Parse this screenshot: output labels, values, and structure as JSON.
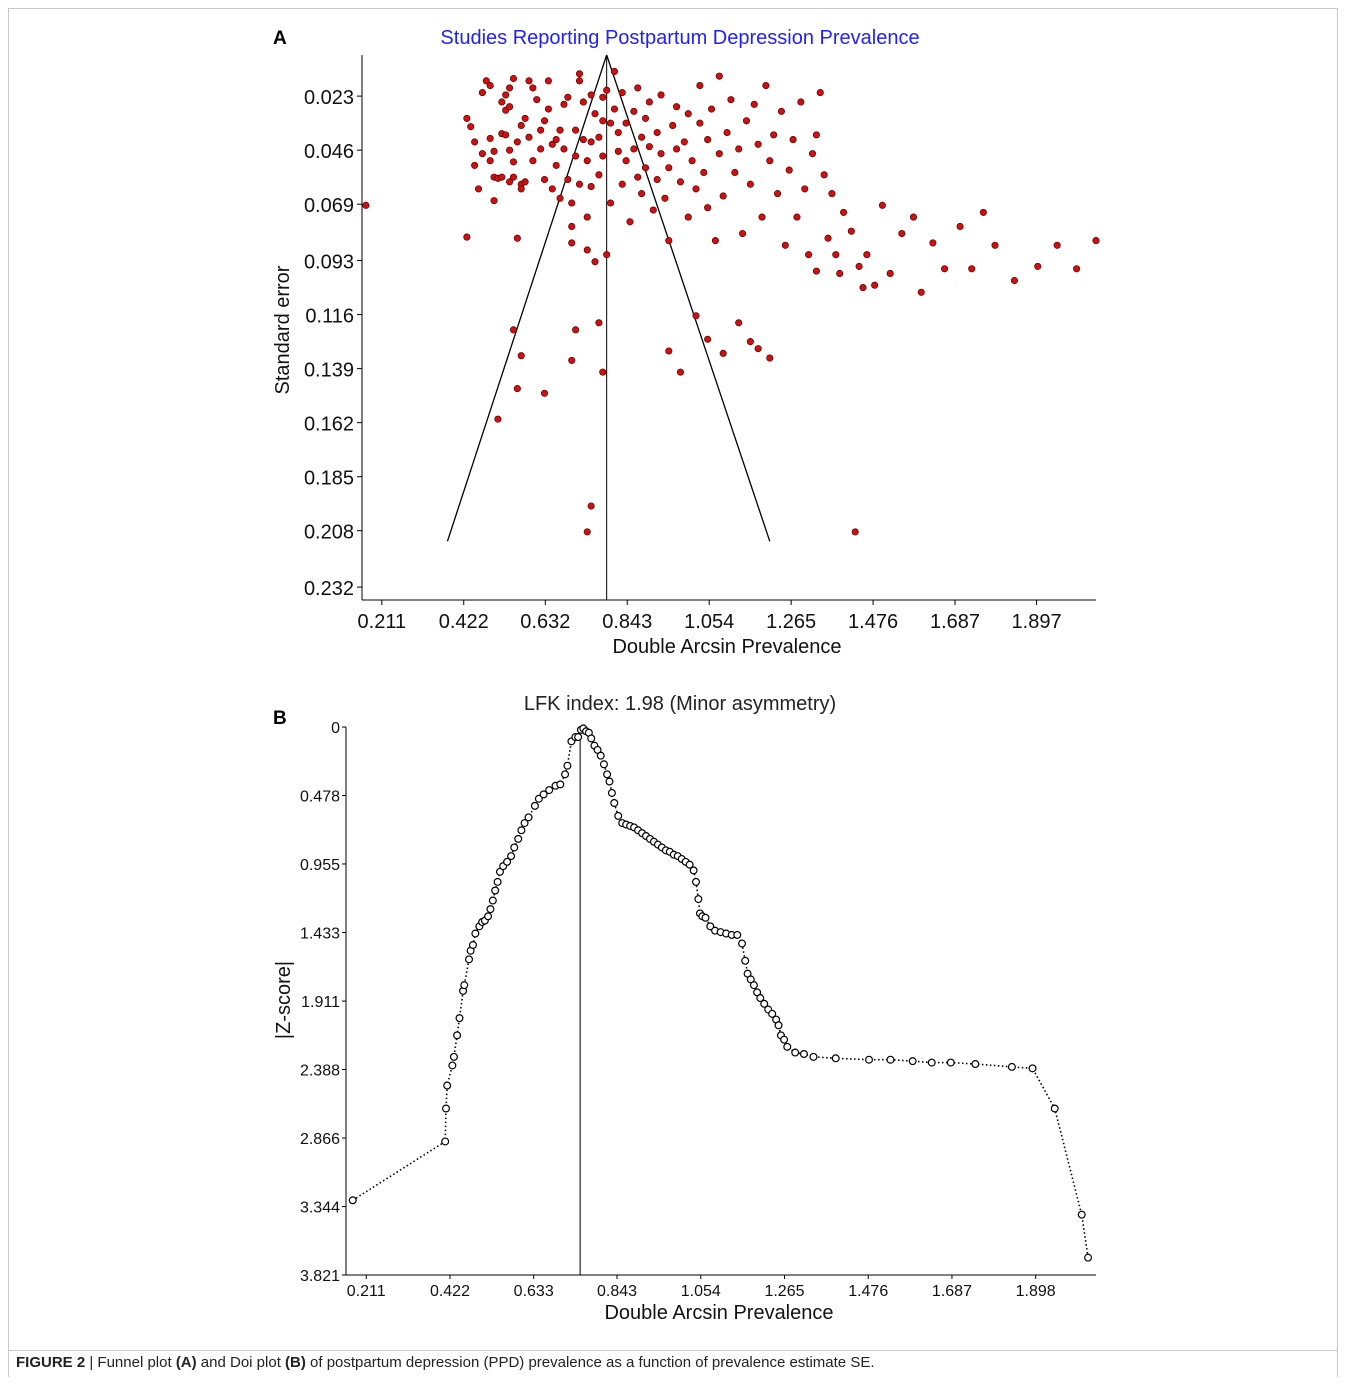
{
  "figure": {
    "caption_lead": "FIGURE 2",
    "caption_parts": [
      " | Funnel plot ",
      "(A)",
      " and Doi plot ",
      "(B)",
      " of postpartum depression (PPD) prevalence as a function of prevalence estimate SE."
    ]
  },
  "chart_data": [
    {
      "panel_label": "A",
      "type": "scatter",
      "title": "Studies Reporting Postpartum Depression Prevalence",
      "title_color": "#1f1fff",
      "xlabel": "Double Arcsin Prevalence",
      "ylabel": "Standard error",
      "x_ticks": [
        "0.211",
        "0.422",
        "0.632",
        "0.843",
        "1.054",
        "1.265",
        "1.476",
        "1.687",
        "1.897"
      ],
      "y_ticks": [
        "0.023",
        "0.046",
        "0.069",
        "0.093",
        "0.116",
        "0.139",
        "0.162",
        "0.185",
        "0.208",
        "0.232"
      ],
      "xlim": [
        0.16,
        2.05
      ],
      "ylim": [
        0.0055,
        0.2375
      ],
      "y_inverted": true,
      "point_color": "#d01010",
      "center_line_x": 0.79,
      "funnel": {
        "apex": [
          0.79,
          0.0055
        ],
        "left_base": [
          0.38,
          0.2125
        ],
        "right_base": [
          1.21,
          0.2125
        ]
      },
      "points": [
        [
          0.17,
          0.0695
        ],
        [
          0.43,
          0.083
        ],
        [
          0.43,
          0.0325
        ],
        [
          0.44,
          0.036
        ],
        [
          0.45,
          0.0425
        ],
        [
          0.45,
          0.0525
        ],
        [
          0.46,
          0.0625
        ],
        [
          0.47,
          0.0475
        ],
        [
          0.47,
          0.0215
        ],
        [
          0.48,
          0.0165
        ],
        [
          0.49,
          0.0505
        ],
        [
          0.49,
          0.041
        ],
        [
          0.49,
          0.0185
        ],
        [
          0.5,
          0.0575
        ],
        [
          0.5,
          0.0675
        ],
        [
          0.5,
          0.0465
        ],
        [
          0.51,
          0.058
        ],
        [
          0.52,
          0.039
        ],
        [
          0.52,
          0.0255
        ],
        [
          0.52,
          0.0575
        ],
        [
          0.53,
          0.0395
        ],
        [
          0.53,
          0.029
        ],
        [
          0.53,
          0.0225
        ],
        [
          0.54,
          0.046
        ],
        [
          0.54,
          0.0195
        ],
        [
          0.54,
          0.0275
        ],
        [
          0.54,
          0.0595
        ],
        [
          0.55,
          0.0575
        ],
        [
          0.55,
          0.0155
        ],
        [
          0.55,
          0.051
        ],
        [
          0.56,
          0.0425
        ],
        [
          0.56,
          0.0835
        ],
        [
          0.57,
          0.0605
        ],
        [
          0.57,
          0.0625
        ],
        [
          0.57,
          0.0355
        ],
        [
          0.58,
          0.0595
        ],
        [
          0.58,
          0.0325
        ],
        [
          0.59,
          0.0165
        ],
        [
          0.59,
          0.0405
        ],
        [
          0.6,
          0.0505
        ],
        [
          0.6,
          0.0195
        ],
        [
          0.61,
          0.0245
        ],
        [
          0.62,
          0.0455
        ],
        [
          0.62,
          0.0375
        ],
        [
          0.63,
          0.0585
        ],
        [
          0.63,
          0.0335
        ],
        [
          0.64,
          0.0165
        ],
        [
          0.64,
          0.0285
        ],
        [
          0.65,
          0.0435
        ],
        [
          0.65,
          0.0625
        ],
        [
          0.66,
          0.0525
        ],
        [
          0.66,
          0.0415
        ],
        [
          0.67,
          0.0665
        ],
        [
          0.67,
          0.0375
        ],
        [
          0.68,
          0.0455
        ],
        [
          0.68,
          0.0265
        ],
        [
          0.69,
          0.0585
        ],
        [
          0.69,
          0.0235
        ],
        [
          0.7,
          0.0685
        ],
        [
          0.7,
          0.0785
        ],
        [
          0.7,
          0.0855
        ],
        [
          0.71,
          0.0485
        ],
        [
          0.71,
          0.0375
        ],
        [
          0.72,
          0.0135
        ],
        [
          0.72,
          0.0165
        ],
        [
          0.72,
          0.0605
        ],
        [
          0.73,
          0.0415
        ],
        [
          0.73,
          0.0255
        ],
        [
          0.74,
          0.0745
        ],
        [
          0.74,
          0.0885
        ],
        [
          0.74,
          0.0505
        ],
        [
          0.75,
          0.0425
        ],
        [
          0.75,
          0.0225
        ],
        [
          0.75,
          0.0615
        ],
        [
          0.76,
          0.0305
        ],
        [
          0.76,
          0.0935
        ],
        [
          0.77,
          0.0405
        ],
        [
          0.77,
          0.0565
        ],
        [
          0.78,
          0.0235
        ],
        [
          0.78,
          0.0335
        ],
        [
          0.78,
          0.0485
        ],
        [
          0.79,
          0.0905
        ],
        [
          0.79,
          0.0205
        ],
        [
          0.8,
          0.0345
        ],
        [
          0.8,
          0.0685
        ],
        [
          0.81,
          0.0285
        ],
        [
          0.81,
          0.0125
        ],
        [
          0.82,
          0.0465
        ],
        [
          0.82,
          0.0385
        ],
        [
          0.83,
          0.0215
        ],
        [
          0.83,
          0.0605
        ],
        [
          0.84,
          0.0345
        ],
        [
          0.84,
          0.0505
        ],
        [
          0.85,
          0.0765
        ],
        [
          0.86,
          0.0455
        ],
        [
          0.86,
          0.0295
        ],
        [
          0.87,
          0.0575
        ],
        [
          0.87,
          0.0195
        ],
        [
          0.88,
          0.0405
        ],
        [
          0.88,
          0.0645
        ],
        [
          0.89,
          0.0325
        ],
        [
          0.89,
          0.0535
        ],
        [
          0.9,
          0.0445
        ],
        [
          0.9,
          0.0255
        ],
        [
          0.91,
          0.0715
        ],
        [
          0.92,
          0.0385
        ],
        [
          0.92,
          0.0585
        ],
        [
          0.93,
          0.0475
        ],
        [
          0.93,
          0.0225
        ],
        [
          0.94,
          0.0665
        ],
        [
          0.95,
          0.0535
        ],
        [
          0.95,
          0.0845
        ],
        [
          0.96,
          0.0355
        ],
        [
          0.97,
          0.0455
        ],
        [
          0.97,
          0.0275
        ],
        [
          0.98,
          0.0595
        ],
        [
          0.99,
          0.0425
        ],
        [
          1.0,
          0.0745
        ],
        [
          1.0,
          0.0305
        ],
        [
          1.01,
          0.0505
        ],
        [
          1.02,
          0.0625
        ],
        [
          1.03,
          0.0345
        ],
        [
          1.03,
          0.0185
        ],
        [
          1.04,
          0.0555
        ],
        [
          1.05,
          0.0415
        ],
        [
          1.05,
          0.0705
        ],
        [
          1.06,
          0.0285
        ],
        [
          1.07,
          0.0845
        ],
        [
          1.08,
          0.0475
        ],
        [
          1.08,
          0.0145
        ],
        [
          1.09,
          0.0655
        ],
        [
          1.1,
          0.0385
        ],
        [
          1.11,
          0.0245
        ],
        [
          1.12,
          0.0555
        ],
        [
          1.13,
          0.0455
        ],
        [
          1.14,
          0.0815
        ],
        [
          1.15,
          0.0335
        ],
        [
          1.16,
          0.0605
        ],
        [
          1.17,
          0.0265
        ],
        [
          1.18,
          0.0435
        ],
        [
          1.19,
          0.0745
        ],
        [
          1.2,
          0.0185
        ],
        [
          1.21,
          0.0505
        ],
        [
          1.22,
          0.0395
        ],
        [
          1.23,
          0.0645
        ],
        [
          1.24,
          0.0295
        ],
        [
          1.25,
          0.0865
        ],
        [
          1.26,
          0.0545
        ],
        [
          1.27,
          0.0415
        ],
        [
          1.28,
          0.0745
        ],
        [
          1.29,
          0.0255
        ],
        [
          1.3,
          0.0625
        ],
        [
          1.31,
          0.0905
        ],
        [
          1.32,
          0.0475
        ],
        [
          1.33,
          0.0395
        ],
        [
          1.33,
          0.0975
        ],
        [
          1.34,
          0.0215
        ],
        [
          1.35,
          0.0565
        ],
        [
          1.36,
          0.0835
        ],
        [
          1.37,
          0.0645
        ],
        [
          1.38,
          0.0905
        ],
        [
          1.39,
          0.0985
        ],
        [
          1.4,
          0.0725
        ],
        [
          1.42,
          0.0805
        ],
        [
          1.44,
          0.0955
        ],
        [
          1.45,
          0.1045
        ],
        [
          1.46,
          0.0905
        ],
        [
          1.48,
          0.1035
        ],
        [
          1.5,
          0.0695
        ],
        [
          1.52,
          0.0985
        ],
        [
          1.55,
          0.0815
        ],
        [
          1.58,
          0.0745
        ],
        [
          1.6,
          0.1065
        ],
        [
          1.63,
          0.0855
        ],
        [
          1.66,
          0.0965
        ],
        [
          1.7,
          0.0785
        ],
        [
          1.73,
          0.0965
        ],
        [
          1.76,
          0.0725
        ],
        [
          1.79,
          0.0865
        ],
        [
          1.84,
          0.1015
        ],
        [
          1.9,
          0.0955
        ],
        [
          1.95,
          0.0865
        ],
        [
          2.0,
          0.0965
        ],
        [
          2.05,
          0.0845
        ],
        [
          0.55,
          0.1225
        ],
        [
          0.57,
          0.1335
        ],
        [
          0.63,
          0.1495
        ],
        [
          0.7,
          0.1355
        ],
        [
          0.71,
          0.1225
        ],
        [
          0.77,
          0.1195
        ],
        [
          0.78,
          0.1405
        ],
        [
          0.95,
          0.1315
        ],
        [
          0.98,
          0.1405
        ],
        [
          1.02,
          0.1165
        ],
        [
          1.05,
          0.1265
        ],
        [
          1.09,
          0.1325
        ],
        [
          1.13,
          0.1195
        ],
        [
          1.16,
          0.1275
        ],
        [
          1.18,
          0.1305
        ],
        [
          1.21,
          0.1345
        ],
        [
          0.56,
          0.1475
        ],
        [
          0.51,
          0.1605
        ],
        [
          0.75,
          0.1975
        ],
        [
          0.74,
          0.2085
        ],
        [
          1.43,
          0.2085
        ]
      ]
    },
    {
      "panel_label": "B",
      "type": "line",
      "title": "LFK index: 1.98 (Minor asymmetry)",
      "xlabel": "Double Arcsin Prevalence",
      "ylabel": "|Z-score|",
      "x_ticks": [
        "0.211",
        "0.422",
        "0.633",
        "0.843",
        "1.054",
        "1.265",
        "1.476",
        "1.687",
        "1.898"
      ],
      "y_ticks": [
        "0",
        "0.478",
        "0.955",
        "1.433",
        "1.911",
        "2.388",
        "2.866",
        "3.344",
        "3.821"
      ],
      "xlim": [
        0.16,
        2.05
      ],
      "ylim": [
        0,
        3.821
      ],
      "y_inverted": true,
      "center_line_x": 0.75,
      "marker": "open-circle",
      "line_style": "dotted",
      "points": [
        [
          0.177,
          3.3
        ],
        [
          0.41,
          2.89
        ],
        [
          0.412,
          2.66
        ],
        [
          0.415,
          2.5
        ],
        [
          0.428,
          2.36
        ],
        [
          0.432,
          2.3
        ],
        [
          0.44,
          2.15
        ],
        [
          0.446,
          2.03
        ],
        [
          0.455,
          1.84
        ],
        [
          0.458,
          1.8
        ],
        [
          0.47,
          1.62
        ],
        [
          0.474,
          1.56
        ],
        [
          0.48,
          1.52
        ],
        [
          0.486,
          1.44
        ],
        [
          0.496,
          1.39
        ],
        [
          0.503,
          1.36
        ],
        [
          0.51,
          1.35
        ],
        [
          0.518,
          1.32
        ],
        [
          0.524,
          1.27
        ],
        [
          0.53,
          1.21
        ],
        [
          0.536,
          1.14
        ],
        [
          0.542,
          1.08
        ],
        [
          0.548,
          1.01
        ],
        [
          0.556,
          0.97
        ],
        [
          0.566,
          0.94
        ],
        [
          0.576,
          0.9
        ],
        [
          0.584,
          0.84
        ],
        [
          0.594,
          0.78
        ],
        [
          0.602,
          0.72
        ],
        [
          0.61,
          0.67
        ],
        [
          0.62,
          0.63
        ],
        [
          0.636,
          0.55
        ],
        [
          0.646,
          0.5
        ],
        [
          0.658,
          0.47
        ],
        [
          0.672,
          0.44
        ],
        [
          0.688,
          0.41
        ],
        [
          0.7,
          0.4
        ],
        [
          0.712,
          0.33
        ],
        [
          0.718,
          0.27
        ],
        [
          0.728,
          0.1
        ],
        [
          0.738,
          0.07
        ],
        [
          0.745,
          0.07
        ],
        [
          0.752,
          0.02
        ],
        [
          0.758,
          0.01
        ],
        [
          0.765,
          0.03
        ],
        [
          0.772,
          0.04
        ],
        [
          0.778,
          0.08
        ],
        [
          0.786,
          0.13
        ],
        [
          0.794,
          0.16
        ],
        [
          0.802,
          0.2
        ],
        [
          0.81,
          0.26
        ],
        [
          0.818,
          0.33
        ],
        [
          0.824,
          0.38
        ],
        [
          0.83,
          0.46
        ],
        [
          0.836,
          0.53
        ],
        [
          0.846,
          0.62
        ],
        [
          0.856,
          0.67
        ],
        [
          0.866,
          0.68
        ],
        [
          0.876,
          0.69
        ],
        [
          0.886,
          0.7
        ],
        [
          0.896,
          0.72
        ],
        [
          0.906,
          0.74
        ],
        [
          0.916,
          0.76
        ],
        [
          0.926,
          0.78
        ],
        [
          0.936,
          0.8
        ],
        [
          0.946,
          0.82
        ],
        [
          0.956,
          0.84
        ],
        [
          0.966,
          0.86
        ],
        [
          0.976,
          0.87
        ],
        [
          0.986,
          0.89
        ],
        [
          0.996,
          0.9
        ],
        [
          1.006,
          0.92
        ],
        [
          1.016,
          0.94
        ],
        [
          1.026,
          0.96
        ],
        [
          1.036,
          1.0
        ],
        [
          1.042,
          1.08
        ],
        [
          1.048,
          1.2
        ],
        [
          1.052,
          1.3
        ],
        [
          1.058,
          1.32
        ],
        [
          1.066,
          1.33
        ],
        [
          1.078,
          1.39
        ],
        [
          1.09,
          1.42
        ],
        [
          1.104,
          1.43
        ],
        [
          1.118,
          1.44
        ],
        [
          1.132,
          1.45
        ],
        [
          1.146,
          1.45
        ],
        [
          1.158,
          1.51
        ],
        [
          1.166,
          1.63
        ],
        [
          1.172,
          1.72
        ],
        [
          1.18,
          1.76
        ],
        [
          1.188,
          1.8
        ],
        [
          1.196,
          1.85
        ],
        [
          1.204,
          1.89
        ],
        [
          1.214,
          1.93
        ],
        [
          1.224,
          1.97
        ],
        [
          1.234,
          2.0
        ],
        [
          1.244,
          2.04
        ],
        [
          1.25,
          2.08
        ],
        [
          1.256,
          2.15
        ],
        [
          1.264,
          2.18
        ],
        [
          1.272,
          2.23
        ],
        [
          1.292,
          2.27
        ],
        [
          1.314,
          2.28
        ],
        [
          1.338,
          2.3
        ],
        [
          1.394,
          2.31
        ],
        [
          1.478,
          2.32
        ],
        [
          1.532,
          2.32
        ],
        [
          1.588,
          2.33
        ],
        [
          1.636,
          2.34
        ],
        [
          1.684,
          2.34
        ],
        [
          1.746,
          2.35
        ],
        [
          1.838,
          2.37
        ],
        [
          1.89,
          2.38
        ],
        [
          1.946,
          2.66
        ],
        [
          2.014,
          3.4
        ],
        [
          2.03,
          3.7
        ]
      ]
    }
  ]
}
